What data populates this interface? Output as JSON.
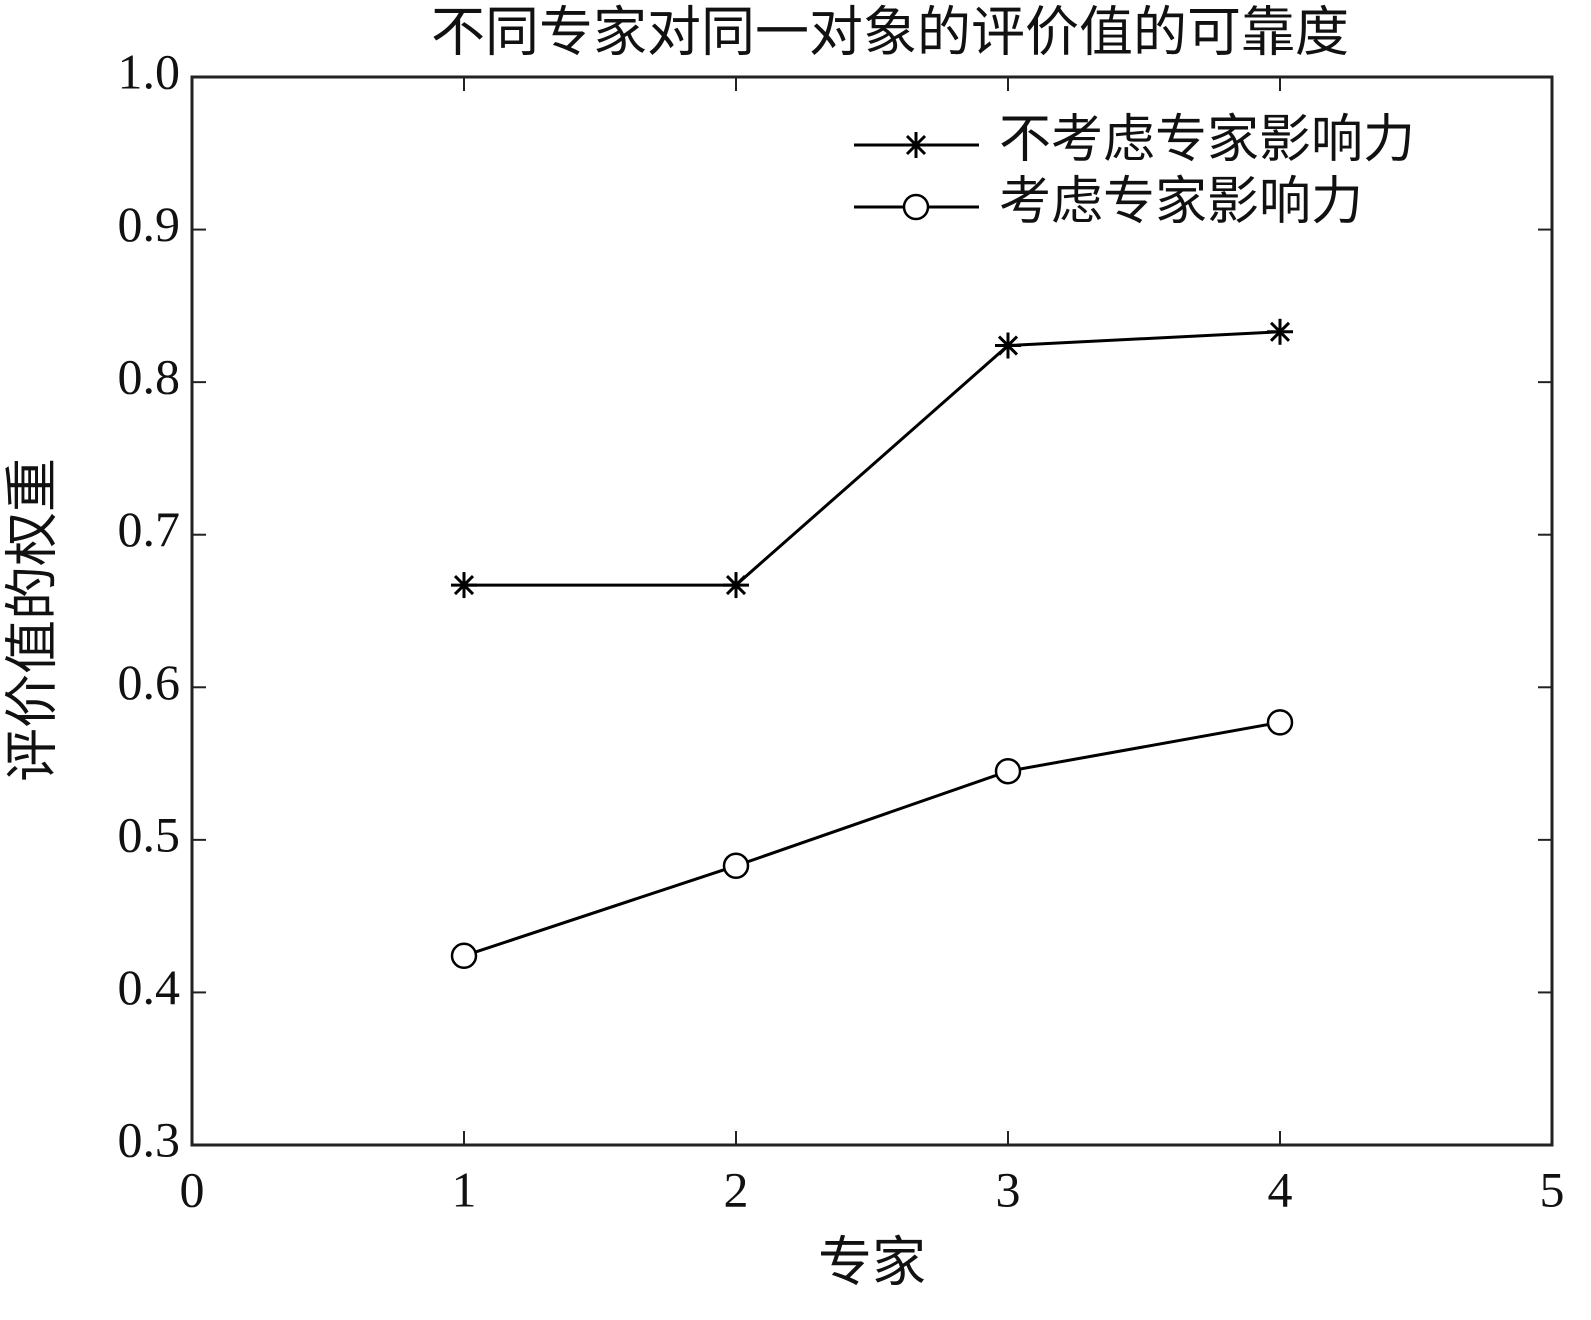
{
  "chart_data": {
    "type": "line",
    "title": "不同专家对同一对象的评价值的可靠度",
    "x_label": "专家",
    "y_label": "评价值的权重",
    "x": [
      1,
      2,
      3,
      4
    ],
    "series": [
      {
        "name": "不考虑专家影响力",
        "color": "#000000",
        "marker": "*",
        "values": [
          0.667,
          0.667,
          0.824,
          0.833
        ]
      },
      {
        "name": "考虑专家影响力",
        "color": "#000000",
        "marker": "o",
        "values": [
          0.424,
          0.483,
          0.545,
          0.577
        ]
      }
    ],
    "xlim": [
      0,
      5
    ],
    "xticks": [
      0,
      1,
      2,
      3,
      4,
      5
    ],
    "ylim": [
      0.3,
      1
    ],
    "yticks": [
      0.3,
      0.4,
      0.5,
      0.6,
      0.7,
      0.8,
      0.9,
      {
        "value": 1,
        "label": "1.0"
      }
    ],
    "grid": false,
    "legend": "upper right"
  }
}
